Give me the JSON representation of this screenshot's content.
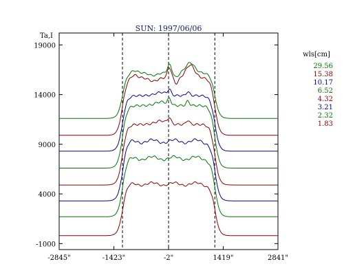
{
  "chart_data": {
    "type": "line",
    "title": "SUN: 1997/06/06",
    "ylabel": "Ta,I",
    "xlabel": "",
    "xlim": [
      -2845,
      2841
    ],
    "ylim": [
      -1600,
      20200
    ],
    "x_ticks": [
      {
        "value": -2845,
        "label": "-2845\""
      },
      {
        "value": -1423,
        "label": "-1423\""
      },
      {
        "value": -2,
        "label": "-2\""
      },
      {
        "value": 1419,
        "label": "1419\""
      },
      {
        "value": 2841,
        "label": "2841\""
      }
    ],
    "y_ticks": [
      {
        "value": -1000,
        "label": "-1000"
      },
      {
        "value": 4000,
        "label": "4000"
      },
      {
        "value": 9000,
        "label": "9000"
      },
      {
        "value": 14000,
        "label": "14000"
      },
      {
        "value": 19000,
        "label": "19000"
      }
    ],
    "vlines": [
      -1200,
      -2,
      1200
    ],
    "legend": {
      "title": "wls[cm]",
      "position": "right"
    },
    "series": [
      {
        "name": "29.56",
        "color": "#007700",
        "base": 11600,
        "plateau": 16200,
        "shape": "peaks"
      },
      {
        "name": "15.38",
        "color": "#880000",
        "base": 9900,
        "plateau": 15700,
        "shape": "peaks"
      },
      {
        "name": "10.17",
        "color": "#000099",
        "base": 8300,
        "plateau": 13900,
        "shape": "mid"
      },
      {
        "name": "6.52",
        "color": "#007700",
        "base": 6600,
        "plateau": 12900,
        "shape": "mid"
      },
      {
        "name": "4.32",
        "color": "#880000",
        "base": 4900,
        "plateau": 11000,
        "shape": "mid"
      },
      {
        "name": "3.21",
        "color": "#000099",
        "base": 3300,
        "plateau": 9300,
        "shape": "flat"
      },
      {
        "name": "2.32",
        "color": "#007700",
        "base": 1700,
        "plateau": 7600,
        "shape": "flat"
      },
      {
        "name": "1.83",
        "color": "#880000",
        "base": -200,
        "plateau": 5000,
        "shape": "flat"
      }
    ],
    "grid": false
  }
}
